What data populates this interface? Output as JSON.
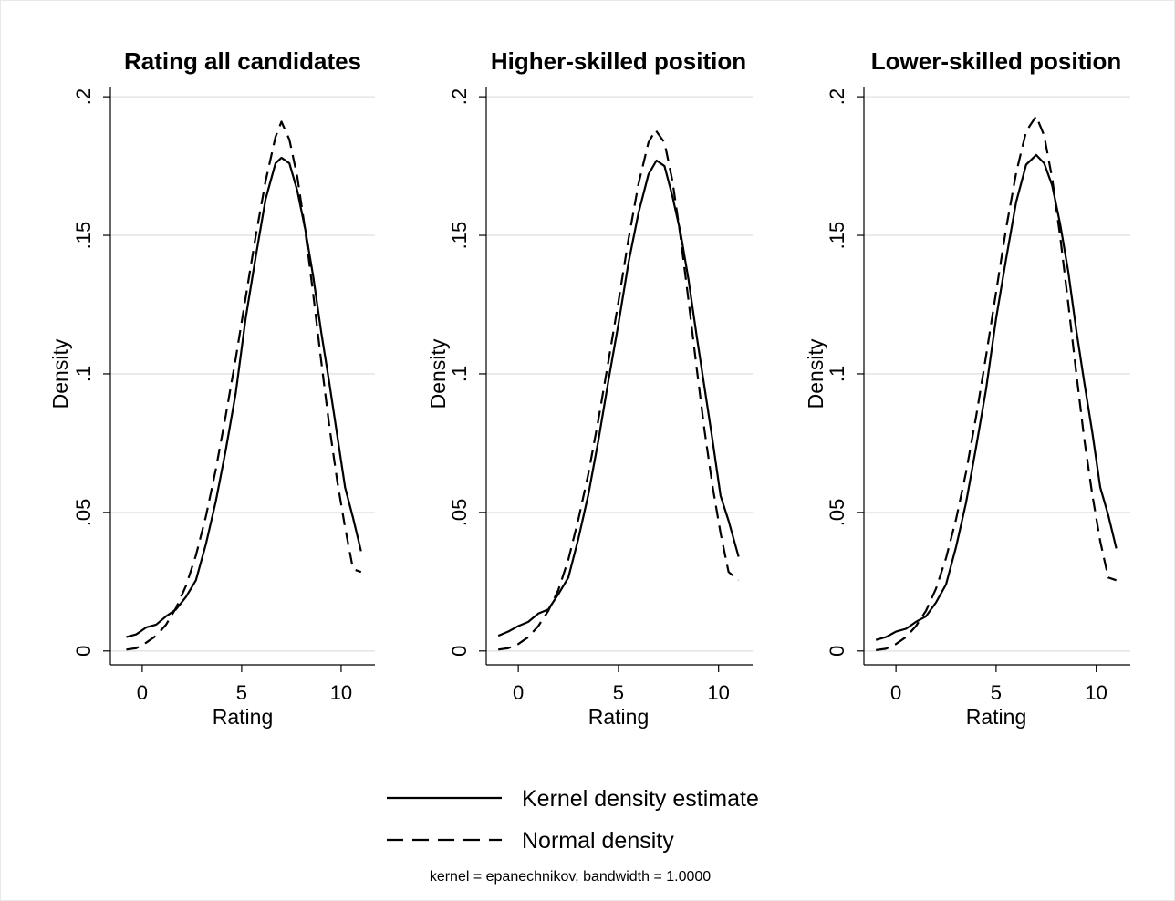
{
  "chart_data": [
    {
      "type": "line",
      "title": "Rating all candidates",
      "xlabel": "Rating",
      "ylabel": "Density",
      "xlim": [
        -1.6,
        11.7
      ],
      "ylim": [
        -0.005,
        0.203
      ],
      "xticks": [
        0,
        5,
        10
      ],
      "xtick_labels": [
        "0",
        "5",
        "10"
      ],
      "yticks": [
        0,
        0.05,
        0.1,
        0.15,
        0.2
      ],
      "ytick_labels": [
        "0",
        ".05",
        ".1",
        ".15",
        ".2"
      ],
      "grid": true,
      "series": [
        {
          "name": "Kernel density estimate",
          "x": [
            -0.8,
            -0.3,
            0.2,
            0.7,
            1.2,
            1.7,
            2.2,
            2.7,
            3.2,
            3.7,
            4.2,
            4.7,
            5.2,
            5.7,
            6.2,
            6.7,
            7.0,
            7.4,
            7.8,
            8.2,
            8.6,
            9.0,
            9.4,
            9.8,
            10.2,
            10.6,
            11.0
          ],
          "y": [
            0.005,
            0.006,
            0.0085,
            0.0095,
            0.0125,
            0.015,
            0.0195,
            0.0255,
            0.0385,
            0.054,
            0.0725,
            0.093,
            0.12,
            0.142,
            0.163,
            0.176,
            0.178,
            0.176,
            0.166,
            0.152,
            0.135,
            0.115,
            0.097,
            0.078,
            0.059,
            0.048,
            0.036
          ]
        },
        {
          "name": "Normal density",
          "x": [
            -0.8,
            -0.3,
            0.2,
            0.7,
            1.2,
            1.7,
            2.2,
            2.7,
            3.2,
            3.7,
            4.2,
            4.7,
            5.2,
            5.7,
            6.2,
            6.7,
            7.0,
            7.4,
            7.8,
            8.2,
            8.6,
            9.0,
            9.4,
            9.8,
            10.2,
            10.6,
            11.0
          ],
          "y": [
            0.0005,
            0.001,
            0.003,
            0.0055,
            0.0095,
            0.0155,
            0.0235,
            0.0345,
            0.0485,
            0.0655,
            0.085,
            0.1055,
            0.1275,
            0.1495,
            0.1695,
            0.1855,
            0.191,
            0.1845,
            0.171,
            0.1515,
            0.1285,
            0.1045,
            0.0815,
            0.0615,
            0.0445,
            0.0295,
            0.0285
          ]
        }
      ]
    },
    {
      "type": "line",
      "title": "Higher-skilled position",
      "xlabel": "Rating",
      "ylabel": "Density",
      "xlim": [
        -1.6,
        11.7
      ],
      "ylim": [
        -0.005,
        0.203
      ],
      "xticks": [
        0,
        5,
        10
      ],
      "xtick_labels": [
        "0",
        "5",
        "10"
      ],
      "yticks": [
        0,
        0.05,
        0.1,
        0.15,
        0.2
      ],
      "ytick_labels": [
        "0",
        ".05",
        ".1",
        ".15",
        ".2"
      ],
      "grid": true,
      "series": [
        {
          "name": "Kernel density estimate",
          "x": [
            -1.0,
            -0.5,
            0.0,
            0.5,
            1.0,
            1.5,
            2.0,
            2.5,
            3.0,
            3.5,
            4.0,
            4.5,
            5.0,
            5.5,
            6.0,
            6.5,
            6.9,
            7.3,
            7.7,
            8.1,
            8.5,
            8.9,
            9.3,
            9.7,
            10.1,
            10.5,
            11.0
          ],
          "y": [
            0.0055,
            0.007,
            0.009,
            0.0105,
            0.0135,
            0.015,
            0.0205,
            0.0265,
            0.0405,
            0.0565,
            0.076,
            0.0975,
            0.118,
            0.14,
            0.158,
            0.172,
            0.177,
            0.175,
            0.164,
            0.151,
            0.134,
            0.114,
            0.095,
            0.076,
            0.056,
            0.047,
            0.034
          ]
        },
        {
          "name": "Normal density",
          "x": [
            -1.0,
            -0.5,
            0.0,
            0.5,
            1.0,
            1.5,
            2.0,
            2.5,
            3.0,
            3.5,
            4.0,
            4.5,
            5.0,
            5.5,
            6.0,
            6.5,
            6.85,
            7.3,
            7.7,
            8.1,
            8.5,
            8.9,
            9.3,
            9.7,
            10.1,
            10.5,
            11.0
          ],
          "y": [
            0.0005,
            0.001,
            0.0025,
            0.005,
            0.009,
            0.0145,
            0.022,
            0.033,
            0.0475,
            0.064,
            0.0835,
            0.1045,
            0.126,
            0.1485,
            0.1685,
            0.1835,
            0.188,
            0.1835,
            0.1695,
            0.1495,
            0.1265,
            0.1025,
            0.0795,
            0.0595,
            0.0425,
            0.0285,
            0.0255
          ]
        }
      ]
    },
    {
      "type": "line",
      "title": "Lower-skilled position",
      "xlabel": "Rating",
      "ylabel": "Density",
      "xlim": [
        -1.6,
        11.7
      ],
      "ylim": [
        -0.005,
        0.203
      ],
      "xticks": [
        0,
        5,
        10
      ],
      "xtick_labels": [
        "0",
        "5",
        "10"
      ],
      "yticks": [
        0,
        0.05,
        0.1,
        0.15,
        0.2
      ],
      "ytick_labels": [
        "0",
        ".05",
        ".1",
        ".15",
        ".2"
      ],
      "grid": true,
      "series": [
        {
          "name": "Kernel density estimate",
          "x": [
            -1.0,
            -0.5,
            0.0,
            0.5,
            1.0,
            1.5,
            2.0,
            2.5,
            3.0,
            3.5,
            4.0,
            4.5,
            5.0,
            5.5,
            6.0,
            6.5,
            7.0,
            7.4,
            7.8,
            8.2,
            8.6,
            9.0,
            9.4,
            9.8,
            10.2,
            10.6,
            11.0
          ],
          "y": [
            0.004,
            0.005,
            0.007,
            0.008,
            0.0105,
            0.0125,
            0.0175,
            0.024,
            0.0375,
            0.0535,
            0.0735,
            0.0945,
            0.12,
            0.1415,
            0.162,
            0.1755,
            0.179,
            0.176,
            0.168,
            0.154,
            0.137,
            0.116,
            0.097,
            0.079,
            0.059,
            0.049,
            0.037
          ]
        },
        {
          "name": "Normal density",
          "x": [
            -1.0,
            -0.5,
            0.0,
            0.5,
            1.0,
            1.5,
            2.0,
            2.5,
            3.0,
            3.5,
            4.0,
            4.5,
            5.0,
            5.5,
            6.0,
            6.5,
            7.0,
            7.4,
            7.8,
            8.2,
            8.6,
            9.0,
            9.4,
            9.8,
            10.2,
            10.6,
            11.0
          ],
          "y": [
            0.0003,
            0.0008,
            0.0025,
            0.005,
            0.009,
            0.0145,
            0.0225,
            0.0335,
            0.0475,
            0.0645,
            0.0845,
            0.1065,
            0.1295,
            0.1525,
            0.1725,
            0.1875,
            0.193,
            0.186,
            0.1705,
            0.1495,
            0.1255,
            0.1005,
            0.0765,
            0.0565,
            0.0395,
            0.0265,
            0.0255
          ]
        }
      ]
    }
  ],
  "legend": {
    "items": [
      {
        "label": "Kernel density estimate",
        "style": "solid"
      },
      {
        "label": "Normal density",
        "style": "dashed"
      }
    ],
    "placement": "bottom-center"
  },
  "note": "kernel = epanechnikov, bandwidth = 1.0000",
  "colors": {
    "line": "#000000",
    "grid": "#e6e6e6",
    "background": "#ffffff"
  }
}
